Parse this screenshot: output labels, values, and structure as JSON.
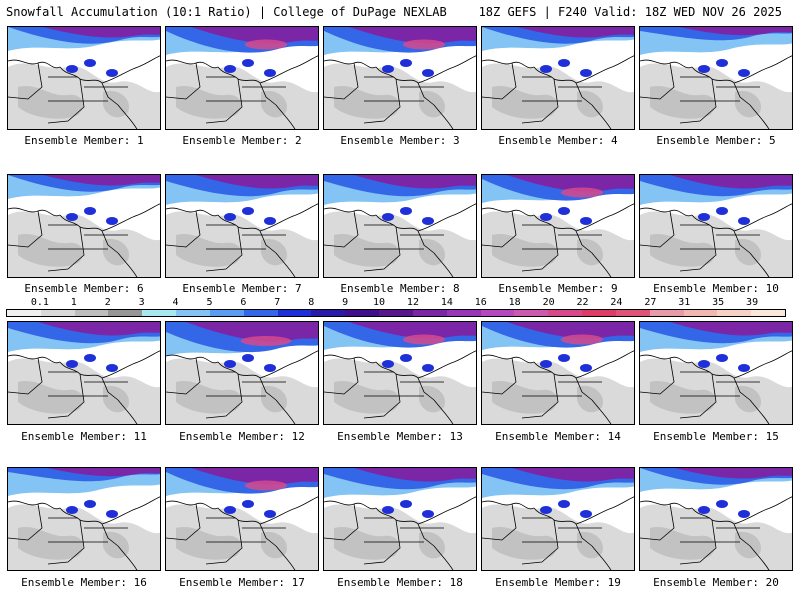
{
  "header": {
    "title": "Snowfall Accumulation (10:1 Ratio) | College of DuPage NEXLAB",
    "run_info": "18Z GEFS | F240 Valid: 18Z WED NOV 26 2025"
  },
  "colorbar": {
    "labels": [
      "0.1",
      "1",
      "2",
      "3",
      "4",
      "5",
      "6",
      "7",
      "8",
      "9",
      "10",
      "12",
      "14",
      "16",
      "18",
      "20",
      "22",
      "24",
      "27",
      "31",
      "35",
      "39"
    ],
    "colors": [
      "#f0f0f0",
      "#d9d9d9",
      "#bdbdbd",
      "#969696",
      "#a8e8f0",
      "#84c4f4",
      "#5a9cf2",
      "#3466e8",
      "#2030d8",
      "#2a1aa8",
      "#40108c",
      "#58188c",
      "#7a26a6",
      "#9a34b8",
      "#b848c0",
      "#cc58b0",
      "#d64a8c",
      "#dc3c66",
      "#e0547a",
      "#e89aa8",
      "#f0b8b0",
      "#f6d2c4",
      "#fae8dc"
    ]
  },
  "members": [
    {
      "label": "Ensemble Member: 1",
      "profile": "north"
    },
    {
      "label": "Ensemble Member: 2",
      "profile": "heavy"
    },
    {
      "label": "Ensemble Member: 3",
      "profile": "heavy"
    },
    {
      "label": "Ensemble Member: 4",
      "profile": "north"
    },
    {
      "label": "Ensemble Member: 5",
      "profile": "light"
    },
    {
      "label": "Ensemble Member: 6",
      "profile": "north"
    },
    {
      "label": "Ensemble Member: 7",
      "profile": "moderate"
    },
    {
      "label": "Ensemble Member: 8",
      "profile": "moderate"
    },
    {
      "label": "Ensemble Member: 9",
      "profile": "heavy"
    },
    {
      "label": "Ensemble Member: 10",
      "profile": "moderate"
    },
    {
      "label": "Ensemble Member: 11",
      "profile": "moderate"
    },
    {
      "label": "Ensemble Member: 12",
      "profile": "extreme"
    },
    {
      "label": "Ensemble Member: 13",
      "profile": "heavy"
    },
    {
      "label": "Ensemble Member: 14",
      "profile": "heavy"
    },
    {
      "label": "Ensemble Member: 15",
      "profile": "moderate"
    },
    {
      "label": "Ensemble Member: 16",
      "profile": "light"
    },
    {
      "label": "Ensemble Member: 17",
      "profile": "heavy"
    },
    {
      "label": "Ensemble Member: 18",
      "profile": "moderate"
    },
    {
      "label": "Ensemble Member: 19",
      "profile": "moderate"
    },
    {
      "label": "Ensemble Member: 20",
      "profile": "north"
    }
  ]
}
